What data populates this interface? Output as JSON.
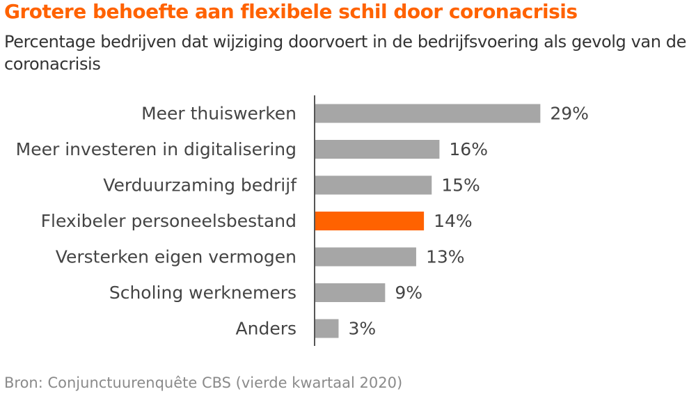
{
  "chart_data": {
    "type": "bar",
    "orientation": "horizontal",
    "title": "Grotere behoefte aan flexibele schil door coronacrisis",
    "subtitle": "Percentage bedrijven dat wijziging doorvoert in de bedrijfsvoering als gevolg van de coronacrisis",
    "categories": [
      "Meer thuiswerken",
      "Meer investeren in digitalisering",
      "Verduurzaming bedrijf",
      "Flexibeler personeelsbestand",
      "Versterken eigen vermogen",
      "Scholing werknemers",
      "Anders"
    ],
    "values": [
      29,
      16,
      15,
      14,
      13,
      9,
      3
    ],
    "value_labels": [
      "29%",
      "16%",
      "15%",
      "14%",
      "13%",
      "9%",
      "3%"
    ],
    "highlight_category": "Flexibeler personeelsbestand",
    "colors": {
      "title": "#ff6200",
      "bar": "#a6a6a6",
      "highlight_bar": "#ff6200",
      "axis": "#555555"
    },
    "xlim": [
      0,
      30
    ],
    "grid": false,
    "legend": "none",
    "source": "Bron: Conjunctuurenquête CBS (vierde kwartaal 2020)"
  }
}
